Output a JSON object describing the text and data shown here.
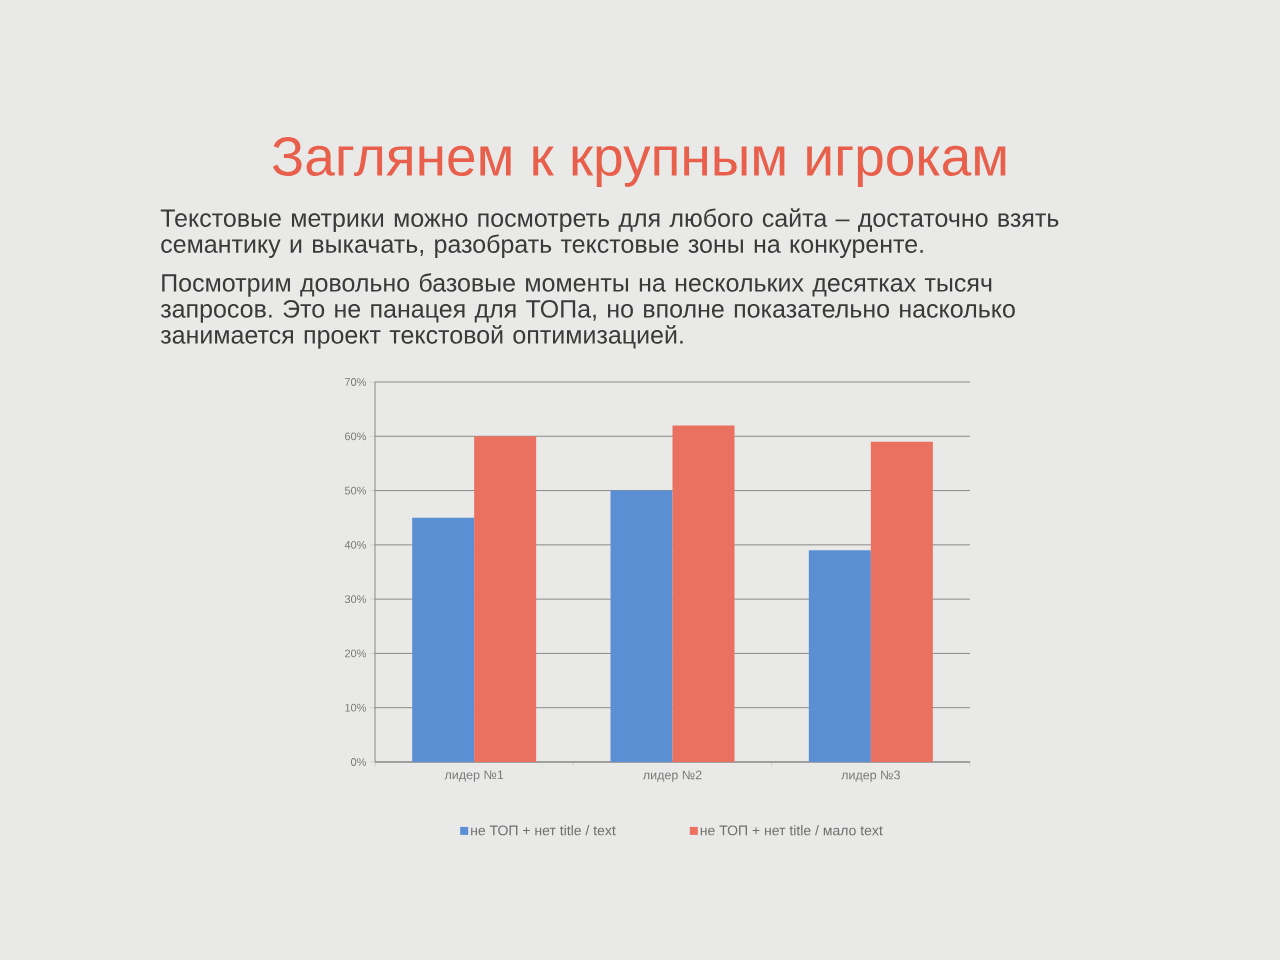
{
  "chart_data": {
    "type": "bar",
    "title": "Заглянем к крупным игрокам",
    "subtitle": "Текстовые метрики можно посмотреть для любого сайта – достаточно взять семантику и выкачать, разобрать текстовые зоны на конкуренте.",
    "annotations": [
      "Посмотрим довольно базовые моменты на нескольких десятках тысяч запросов. Это не панацея для ТОПа, но вполне показательно насколько занимается проект текстовой оптимизацией."
    ],
    "categories": [
      "лидер №1",
      "лидер №2",
      "лидер №3"
    ],
    "series": [
      {
        "name": "не ТОП + нет title / text",
        "color": "#5b8fd4",
        "values": [
          45,
          50,
          39
        ]
      },
      {
        "name": "не ТОП + нет title / мало text",
        "color": "#ea7060",
        "values": [
          60,
          62,
          59
        ]
      }
    ],
    "ylim": [
      0,
      70
    ],
    "yticks": [
      {
        "value": 0,
        "label": "0%"
      },
      {
        "value": 10,
        "label": "10%"
      },
      {
        "value": 20,
        "label": "20%"
      },
      {
        "value": 30,
        "label": "30%"
      },
      {
        "value": 40,
        "label": "40%"
      },
      {
        "value": 50,
        "label": "50%"
      },
      {
        "value": 60,
        "label": "60%"
      },
      {
        "value": 70,
        "label": "70%"
      }
    ],
    "grid": "y",
    "legend": "bottom"
  }
}
